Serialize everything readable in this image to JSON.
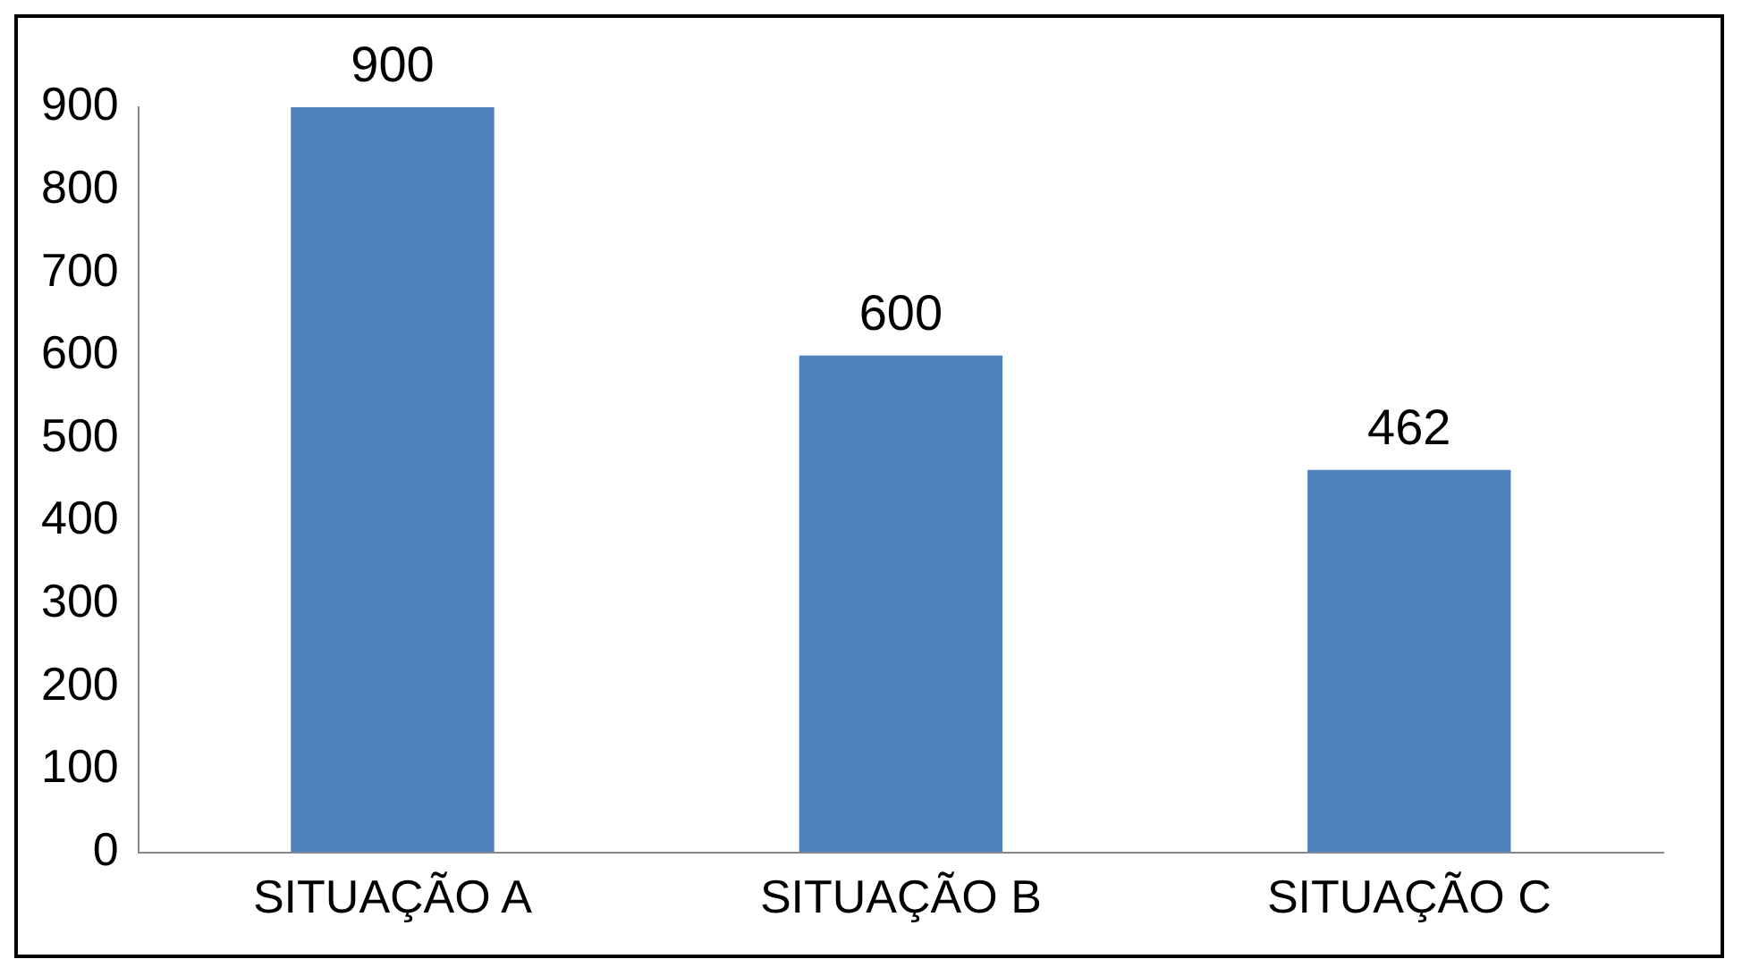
{
  "chart_data": {
    "type": "bar",
    "categories": [
      "SITUAÇÃO A",
      "SITUAÇÃO B",
      "SITUAÇÃO C"
    ],
    "values": [
      900,
      600,
      462
    ],
    "color": "#4f81bd",
    "ylim": [
      0,
      900
    ],
    "yticks": [
      0,
      100,
      200,
      300,
      400,
      500,
      600,
      700,
      800,
      900
    ],
    "grid": false,
    "data_labels": true
  }
}
